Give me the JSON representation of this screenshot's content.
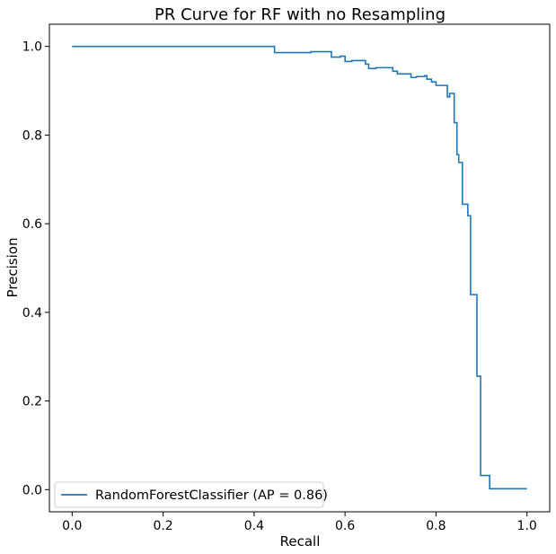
{
  "chart_data": {
    "type": "line",
    "title": "PR Curve for RF with no Resampling",
    "xlabel": "Recall",
    "ylabel": "Precision",
    "xlim": [
      -0.05,
      1.05
    ],
    "ylim": [
      -0.05,
      1.05
    ],
    "x_ticks": [
      0.0,
      0.2,
      0.4,
      0.6,
      0.8,
      1.0
    ],
    "y_ticks": [
      0.0,
      0.2,
      0.4,
      0.6,
      0.8,
      1.0
    ],
    "x_tick_labels": [
      "0.0",
      "0.2",
      "0.4",
      "0.6",
      "0.8",
      "1.0"
    ],
    "y_tick_labels": [
      "0.0",
      "0.2",
      "0.4",
      "0.6",
      "0.8",
      "1.0"
    ],
    "grid": false,
    "legend_position": "lower-left",
    "series": [
      {
        "name": "RandomForestClassifier (AP = 0.86)",
        "color": "#1f77b4",
        "step": true,
        "points": [
          [
            0.0,
            1.0
          ],
          [
            0.445,
            1.0
          ],
          [
            0.445,
            0.986
          ],
          [
            0.525,
            0.986
          ],
          [
            0.525,
            0.988
          ],
          [
            0.57,
            0.988
          ],
          [
            0.57,
            0.976
          ],
          [
            0.59,
            0.976
          ],
          [
            0.59,
            0.978
          ],
          [
            0.6,
            0.978
          ],
          [
            0.6,
            0.966
          ],
          [
            0.615,
            0.966
          ],
          [
            0.615,
            0.968
          ],
          [
            0.645,
            0.968
          ],
          [
            0.645,
            0.96
          ],
          [
            0.652,
            0.96
          ],
          [
            0.652,
            0.95
          ],
          [
            0.668,
            0.95
          ],
          [
            0.668,
            0.952
          ],
          [
            0.705,
            0.952
          ],
          [
            0.705,
            0.944
          ],
          [
            0.715,
            0.944
          ],
          [
            0.715,
            0.938
          ],
          [
            0.745,
            0.938
          ],
          [
            0.745,
            0.93
          ],
          [
            0.757,
            0.93
          ],
          [
            0.757,
            0.932
          ],
          [
            0.775,
            0.932
          ],
          [
            0.775,
            0.934
          ],
          [
            0.78,
            0.934
          ],
          [
            0.78,
            0.926
          ],
          [
            0.79,
            0.926
          ],
          [
            0.79,
            0.92
          ],
          [
            0.8,
            0.92
          ],
          [
            0.8,
            0.912
          ],
          [
            0.825,
            0.912
          ],
          [
            0.825,
            0.886
          ],
          [
            0.83,
            0.886
          ],
          [
            0.83,
            0.894
          ],
          [
            0.84,
            0.894
          ],
          [
            0.84,
            0.828
          ],
          [
            0.846,
            0.828
          ],
          [
            0.846,
            0.756
          ],
          [
            0.85,
            0.756
          ],
          [
            0.85,
            0.738
          ],
          [
            0.858,
            0.738
          ],
          [
            0.858,
            0.644
          ],
          [
            0.87,
            0.644
          ],
          [
            0.87,
            0.618
          ],
          [
            0.876,
            0.618
          ],
          [
            0.876,
            0.44
          ],
          [
            0.89,
            0.44
          ],
          [
            0.89,
            0.256
          ],
          [
            0.898,
            0.256
          ],
          [
            0.898,
            0.032
          ],
          [
            0.918,
            0.032
          ],
          [
            0.918,
            0.002
          ],
          [
            1.0,
            0.002
          ]
        ]
      }
    ]
  }
}
